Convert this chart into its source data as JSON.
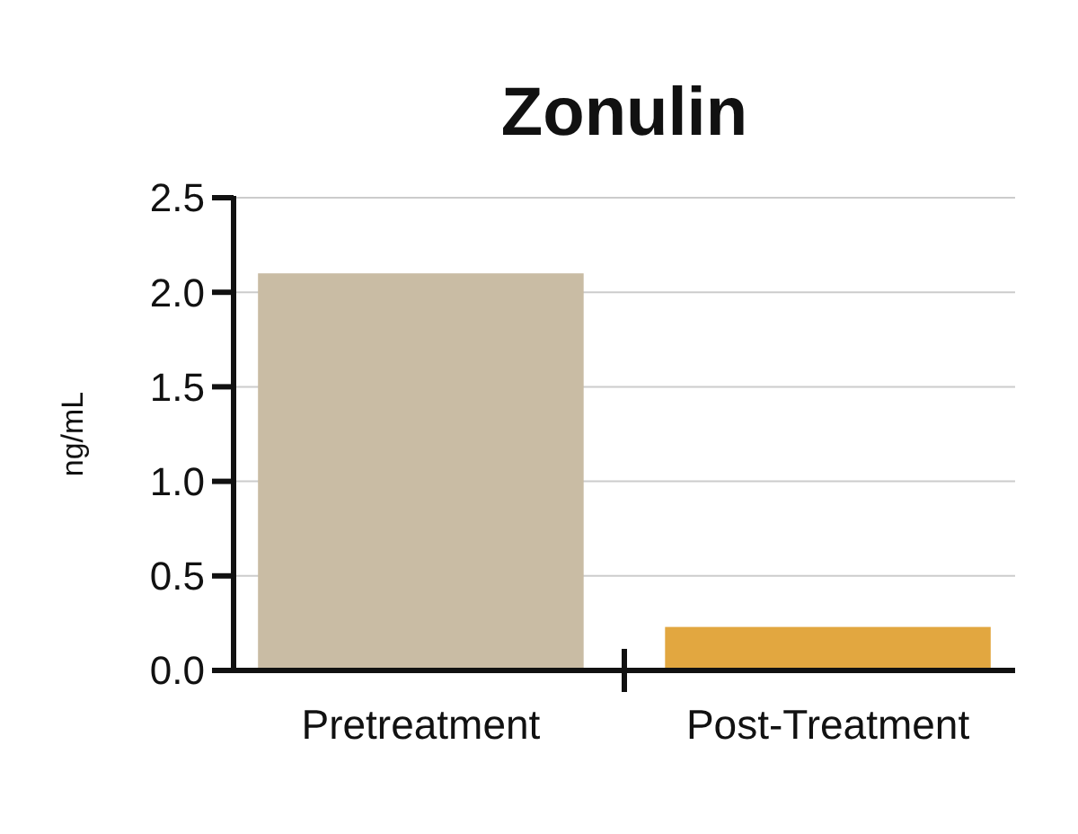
{
  "chart_data": {
    "type": "bar",
    "title": "Zonulin",
    "ylabel": "ng/mL",
    "categories": [
      "Pretreatment",
      "Post-Treatment"
    ],
    "values": [
      2.1,
      0.23
    ],
    "colors": [
      "#c9bca4",
      "#e2a740"
    ],
    "ylim": [
      0,
      2.5
    ],
    "yticks": [
      {
        "value": 0,
        "label": "0.0"
      },
      {
        "value": 0.5,
        "label": "0.5"
      },
      {
        "value": 1,
        "label": "1.0"
      },
      {
        "value": 1.5,
        "label": "1.5"
      },
      {
        "value": 2,
        "label": "2.0"
      },
      {
        "value": 2.5,
        "label": "2.5"
      }
    ],
    "grid": "y"
  }
}
